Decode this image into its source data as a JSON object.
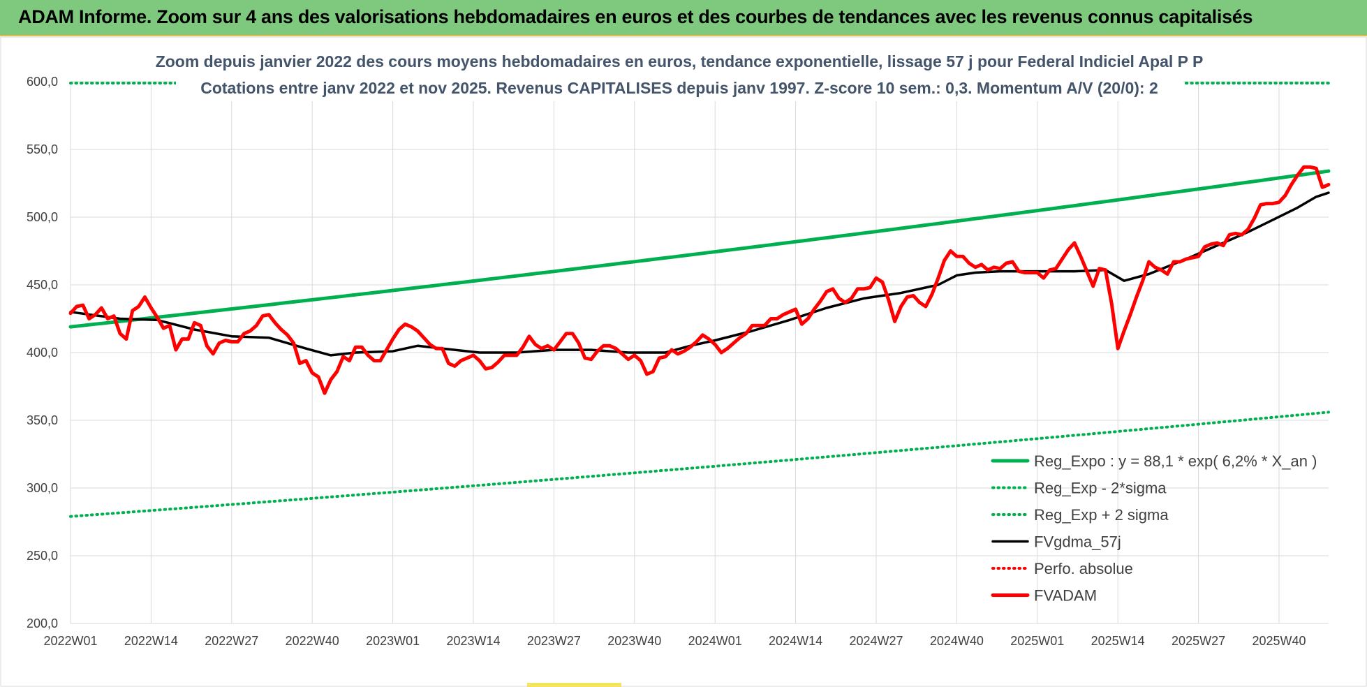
{
  "header": {
    "title": "ADAM Informe. Zoom sur 4 ans des valorisations hebdomadaires en euros et des courbes de tendances avec les revenus connus capitalisés"
  },
  "colors": {
    "header_bg": "#7fc97f",
    "expo": "#00b050",
    "band": "#00b050",
    "fvgdma": "#000000",
    "perfo": "#ff0000",
    "fvadam": "#ff0000",
    "grid": "#d9d9d9"
  },
  "chart_data": {
    "type": "line",
    "title": "Zoom depuis janvier 2022 des cours moyens hebdomadaires en euros, tendance exponentielle, lissage 57 j pour Federal Indiciel Apal P P",
    "subtitle": "Cotations entre janv 2022 et nov 2025. Revenus CAPITALISES depuis janv 1997. Z-score 10 sem.: 0,3. Momentum A/V (20/0): 2",
    "ylim": [
      200,
      600
    ],
    "yticks": [
      "200,0",
      "250,0",
      "300,0",
      "350,0",
      "400,0",
      "450,0",
      "500,0",
      "550,0",
      "600,0"
    ],
    "ytick_values": [
      200,
      250,
      300,
      350,
      400,
      450,
      500,
      550,
      600
    ],
    "x_range": [
      0,
      203
    ],
    "xtick_labels": [
      "2022W01",
      "2022W14",
      "2022W27",
      "2022W40",
      "2023W01",
      "2023W14",
      "2023W27",
      "2023W40",
      "2024W01",
      "2024W14",
      "2024W27",
      "2024W40",
      "2025W01",
      "2025W14",
      "2025W27",
      "2025W40"
    ],
    "xtick_positions": [
      0,
      13,
      26,
      39,
      52,
      65,
      78,
      91,
      104,
      117,
      130,
      143,
      156,
      169,
      182,
      195
    ],
    "grid": true,
    "legend_position": "bottom-right",
    "series": [
      {
        "name": "Reg_Expo : y = 88,1 * exp( 6,2% *  X_an )",
        "style": "solid-thick",
        "color": "#00b050",
        "x": [
          0,
          203
        ],
        "values": [
          419,
          534
        ],
        "curve": "exponential"
      },
      {
        "name": "Reg_Exp - 2*sigma",
        "style": "dotted",
        "color": "#00b050",
        "x": [
          0,
          203
        ],
        "values": [
          279,
          356
        ],
        "curve": "exponential"
      },
      {
        "name": "Reg_Exp + 2 sigma",
        "style": "dotted",
        "color": "#00b050",
        "x": [
          0,
          17,
          180,
          203
        ],
        "values": [
          599,
          599,
          599,
          599
        ],
        "segments": [
          [
            0,
            17
          ],
          [
            180,
            203
          ]
        ]
      },
      {
        "name": "FVgdma_57j",
        "style": "solid",
        "color": "#000000",
        "x": [
          0,
          8,
          14,
          20,
          26,
          32,
          38,
          42,
          46,
          52,
          56,
          60,
          66,
          72,
          78,
          84,
          90,
          96,
          100,
          104,
          110,
          116,
          122,
          128,
          134,
          140,
          143,
          146,
          150,
          156,
          162,
          167,
          170,
          174,
          180,
          186,
          190,
          194,
          198,
          201,
          203
        ],
        "values": [
          430,
          425,
          424,
          417,
          412,
          411,
          403,
          398,
          400,
          401,
          405,
          403,
          400,
          400,
          402,
          402,
          400,
          400,
          405,
          409,
          416,
          424,
          433,
          440,
          444,
          450,
          457,
          459,
          460,
          460,
          460,
          461,
          453,
          458,
          469,
          481,
          489,
          498,
          507,
          515,
          518
        ]
      },
      {
        "name": "Perfo. absolue",
        "style": "dotted",
        "color": "#ff0000",
        "x": [],
        "values": []
      },
      {
        "name": "FVADAM",
        "style": "solid-thick",
        "color": "#ff0000",
        "x": [
          0,
          1,
          2,
          3,
          4,
          5,
          6,
          7,
          8,
          9,
          10,
          11,
          12,
          13,
          14,
          15,
          16,
          17,
          18,
          19,
          20,
          21,
          22,
          23,
          24,
          25,
          26,
          27,
          28,
          29,
          30,
          31,
          32,
          33,
          34,
          35,
          36,
          37,
          38,
          39,
          40,
          41,
          42,
          43,
          44,
          45,
          46,
          47,
          48,
          49,
          50,
          51,
          52,
          53,
          54,
          55,
          56,
          57,
          58,
          59,
          60,
          61,
          62,
          63,
          64,
          65,
          66,
          67,
          68,
          69,
          70,
          71,
          72,
          73,
          74,
          75,
          76,
          77,
          78,
          79,
          80,
          81,
          82,
          83,
          84,
          85,
          86,
          87,
          88,
          89,
          90,
          91,
          92,
          93,
          94,
          95,
          96,
          97,
          98,
          99,
          100,
          101,
          102,
          103,
          104,
          105,
          106,
          107,
          108,
          109,
          110,
          111,
          112,
          113,
          114,
          115,
          116,
          117,
          118,
          119,
          120,
          121,
          122,
          123,
          124,
          125,
          126,
          127,
          128,
          129,
          130,
          131,
          132,
          133,
          134,
          135,
          136,
          137,
          138,
          139,
          140,
          141,
          142,
          143,
          144,
          145,
          146,
          147,
          148,
          149,
          150,
          151,
          152,
          153,
          154,
          155,
          156,
          157,
          158,
          159,
          160,
          161,
          162,
          163,
          164,
          165,
          166,
          167,
          168,
          169,
          170,
          171,
          172,
          173,
          174,
          175,
          176,
          177,
          178,
          179,
          180,
          181,
          182,
          183,
          184,
          185,
          186,
          187,
          188,
          189,
          190,
          191,
          192,
          193,
          194,
          195,
          196,
          197,
          198,
          199,
          200,
          201,
          202,
          203
        ],
        "values": [
          429,
          434,
          435,
          425,
          428,
          433,
          425,
          427,
          414,
          410,
          431,
          434,
          441,
          433,
          426,
          418,
          420,
          402,
          410,
          410,
          422,
          420,
          405,
          399,
          407,
          409,
          408,
          408,
          414,
          416,
          420,
          427,
          428,
          422,
          417,
          413,
          407,
          392,
          394,
          385,
          382,
          370,
          380,
          386,
          397,
          394,
          404,
          404,
          398,
          394,
          394,
          402,
          410,
          417,
          421,
          419,
          416,
          411,
          406,
          403,
          403,
          392,
          390,
          394,
          396,
          398,
          394,
          388,
          389,
          393,
          398,
          398,
          398,
          404,
          412,
          406,
          403,
          405,
          402,
          408,
          414,
          414,
          407,
          396,
          395,
          401,
          405,
          405,
          403,
          399,
          395,
          398,
          394,
          384,
          386,
          396,
          397,
          402,
          399,
          401,
          404,
          408,
          413,
          410,
          406,
          400,
          403,
          407,
          411,
          414,
          420,
          420,
          420,
          425,
          425,
          428,
          430,
          432,
          421,
          425,
          432,
          438,
          445,
          447,
          440,
          437,
          440,
          447,
          447,
          448,
          455,
          452,
          439,
          423,
          434,
          441,
          442,
          437,
          434,
          443,
          455,
          468,
          475,
          471,
          471,
          466,
          463,
          465,
          461,
          463,
          462,
          466,
          467,
          460,
          459,
          459,
          459,
          455,
          461,
          462,
          469,
          476,
          481,
          471,
          460,
          449,
          462,
          461,
          436,
          403,
          416,
          428,
          441,
          453,
          467,
          463,
          461,
          458,
          467,
          467,
          469,
          470,
          471,
          478,
          480,
          481,
          479,
          487,
          488,
          487,
          491,
          499,
          509,
          510,
          510,
          511,
          516,
          524,
          531,
          537,
          537,
          536,
          522,
          524
        ]
      }
    ]
  }
}
